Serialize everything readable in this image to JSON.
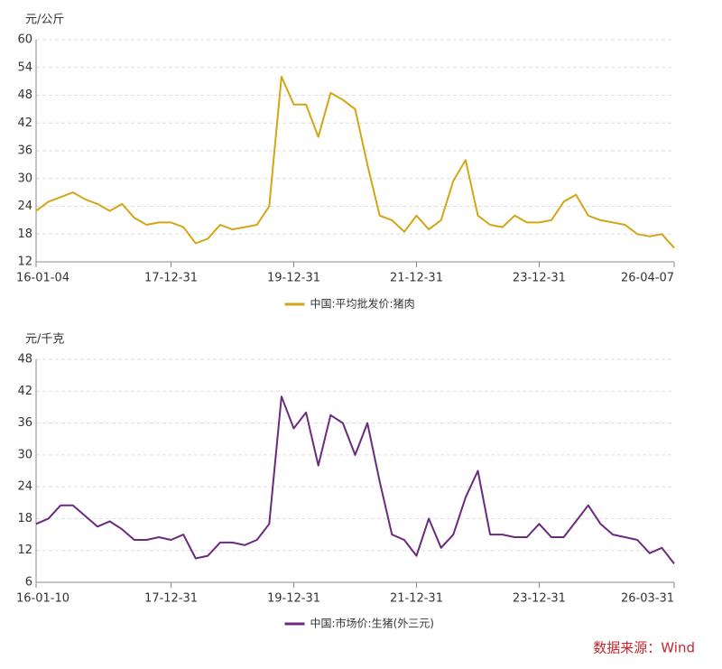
{
  "chart_data": [
    {
      "type": "line",
      "y_label": "元/公斤",
      "categories": [
        "16-01-04",
        null,
        null,
        null,
        null,
        null,
        null,
        null,
        null,
        null,
        null,
        "17-12-31",
        null,
        null,
        null,
        null,
        null,
        null,
        null,
        null,
        null,
        "19-12-31",
        null,
        null,
        null,
        null,
        null,
        null,
        null,
        null,
        null,
        "21-12-31",
        null,
        null,
        null,
        null,
        null,
        null,
        null,
        null,
        null,
        "23-12-31",
        null,
        null,
        null,
        null,
        null,
        null,
        null,
        null,
        null,
        null,
        "26-04-07"
      ],
      "series": [
        {
          "name": "中国:平均批发价:猪肉",
          "color": "#d4a514",
          "values": [
            23,
            25,
            26,
            27,
            25.5,
            24.5,
            23,
            24.5,
            21.5,
            20,
            20.5,
            20.5,
            19.5,
            16,
            17,
            20,
            19,
            19.5,
            20,
            24,
            52,
            46,
            46,
            39,
            48.5,
            47,
            45,
            33,
            22,
            21,
            18.5,
            22,
            19,
            21,
            29.5,
            34,
            22,
            20,
            19.5,
            22,
            20.5,
            20.5,
            21,
            25,
            26.5,
            22,
            21,
            20.5,
            20,
            18,
            17.5,
            18,
            15
          ]
        }
      ],
      "ylim": [
        12,
        60
      ],
      "yticks": [
        12,
        18,
        24,
        30,
        36,
        42,
        48,
        54,
        60
      ],
      "grid": true
    },
    {
      "type": "line",
      "y_label": "元/千克",
      "categories": [
        "16-01-10",
        null,
        null,
        null,
        null,
        null,
        null,
        null,
        null,
        null,
        null,
        "17-12-31",
        null,
        null,
        null,
        null,
        null,
        null,
        null,
        null,
        null,
        "19-12-31",
        null,
        null,
        null,
        null,
        null,
        null,
        null,
        null,
        null,
        "21-12-31",
        null,
        null,
        null,
        null,
        null,
        null,
        null,
        null,
        null,
        "23-12-31",
        null,
        null,
        null,
        null,
        null,
        null,
        null,
        null,
        null,
        null,
        "26-03-31"
      ],
      "series": [
        {
          "name": "中国:市场价:生猪(外三元)",
          "color": "#6a2a7d",
          "values": [
            17,
            18,
            20.5,
            20.5,
            18.5,
            16.5,
            17.5,
            16,
            14,
            14,
            14.5,
            14,
            15,
            10.5,
            11,
            13.5,
            13.5,
            13,
            14,
            17,
            41,
            35,
            38,
            28,
            37.5,
            36,
            30,
            36,
            25,
            15,
            14,
            11,
            18,
            12.5,
            15,
            22,
            27,
            15,
            15,
            14.5,
            14.5,
            17,
            14.5,
            14.5,
            17.5,
            20.5,
            17,
            15,
            14.5,
            14,
            11.5,
            12.5,
            9.5
          ]
        }
      ],
      "ylim": [
        6,
        48
      ],
      "yticks": [
        6,
        12,
        18,
        24,
        30,
        36,
        42,
        48
      ],
      "grid": true
    }
  ],
  "source": "数据来源：Wind"
}
